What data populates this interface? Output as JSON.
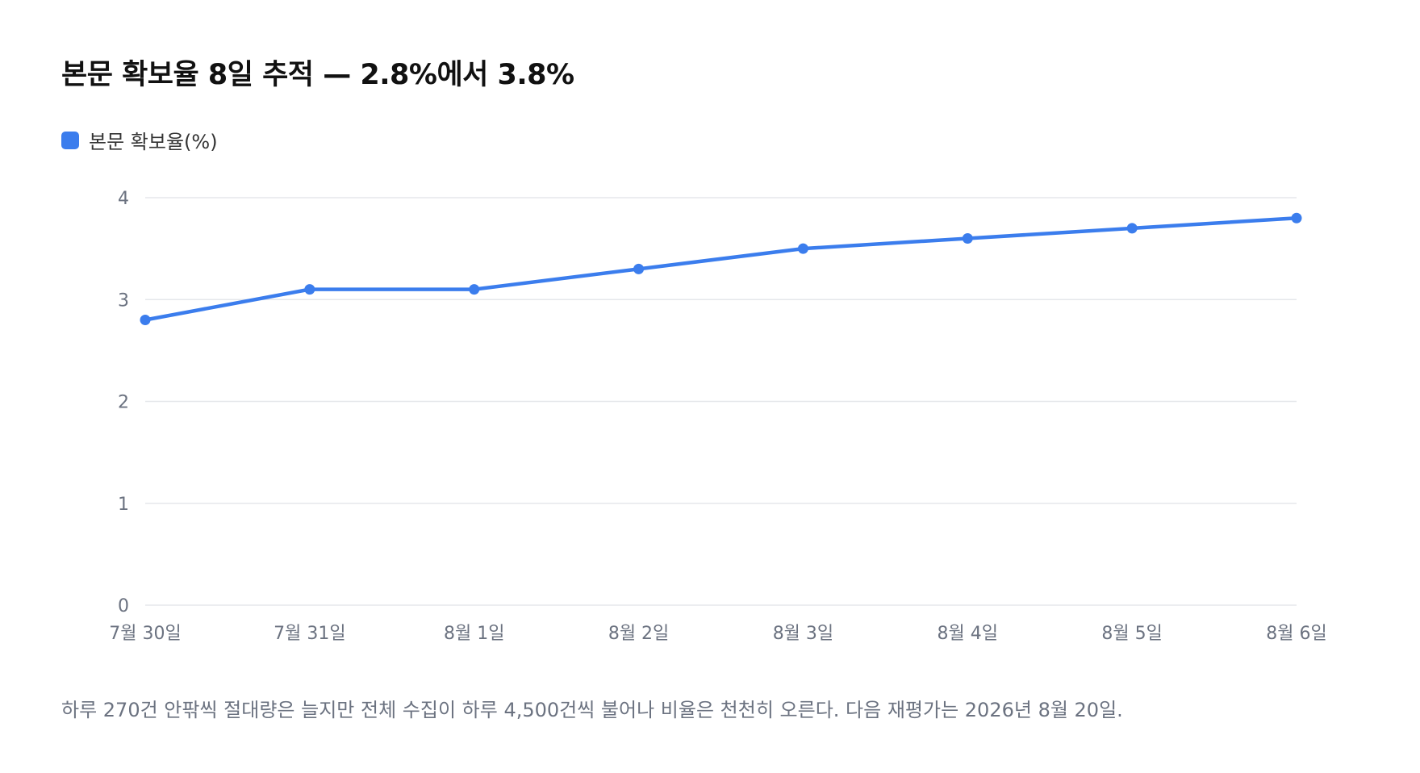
{
  "chart_data": {
    "type": "line",
    "title": "본문 확보율 8일 추적 — 2.8%에서 3.8%",
    "categories": [
      "7월 30일",
      "7월 31일",
      "8월 1일",
      "8월 2일",
      "8월 3일",
      "8월 4일",
      "8월 5일",
      "8월 6일"
    ],
    "series": [
      {
        "name": "본문 확보율(%)",
        "values": [
          2.8,
          3.1,
          3.1,
          3.3,
          3.5,
          3.6,
          3.7,
          3.8
        ],
        "color": "#3b7ded"
      }
    ],
    "ylim": [
      0,
      4
    ],
    "yticks": [
      "0",
      "1",
      "2",
      "3",
      "4"
    ],
    "grid": true,
    "legend_position": "top-left"
  },
  "footnote": "하루 270건 안팎씩 절대량은 늘지만 전체 수집이 하루 4,500건씩 불어나 비율은 천천히 오른다. 다음 재평가는 2026년 8월 20일.",
  "colors": {
    "line": "#3b7ded",
    "grid": "#e5e7eb",
    "axis_text": "#6b7280"
  }
}
